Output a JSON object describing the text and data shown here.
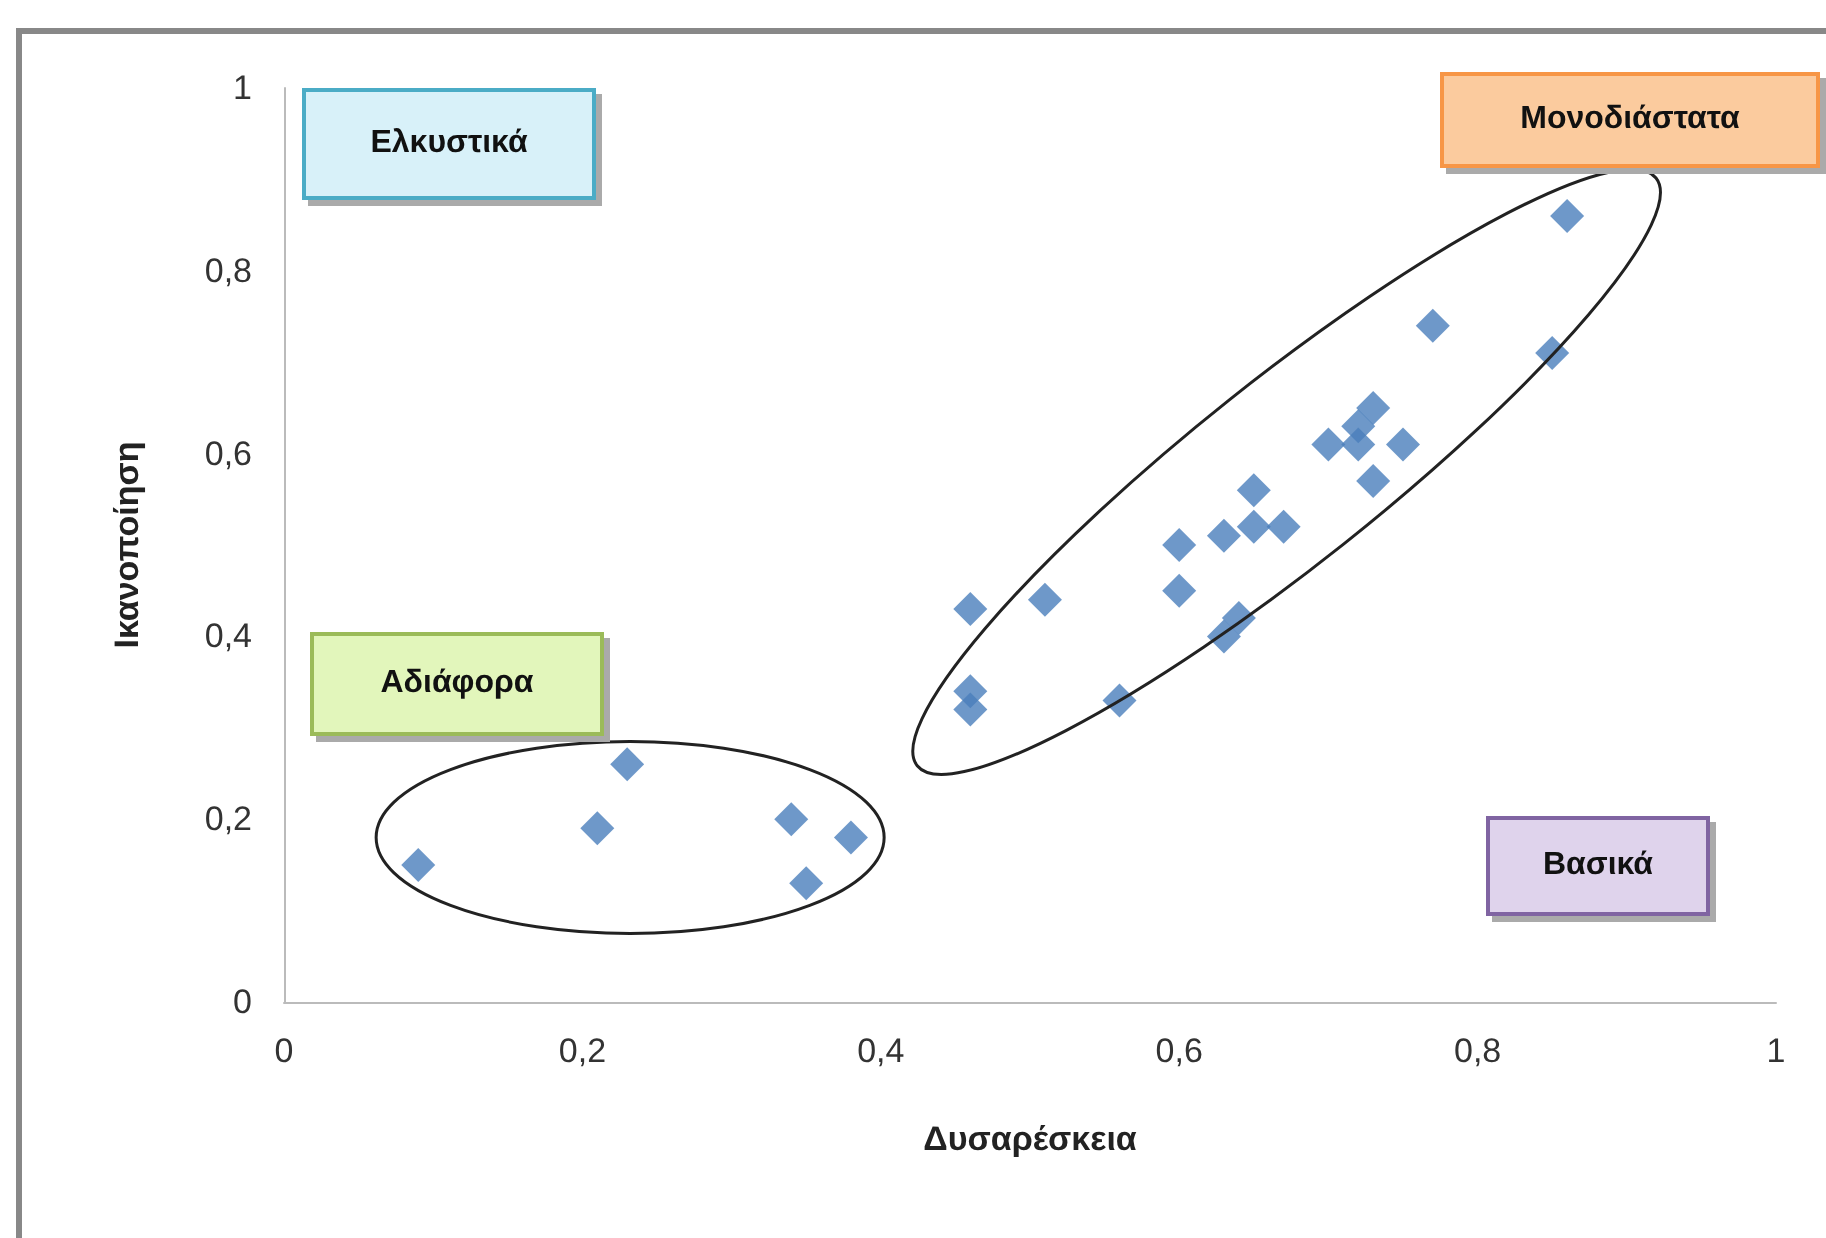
{
  "chart_data": {
    "type": "scatter",
    "xlabel": "Δυσαρέσκεια",
    "ylabel": "Ικανοποίηση",
    "annotations": [
      "Ελκυστικά",
      "Μονοδιάστατα",
      "Αδιάφορα",
      "Βασικά"
    ],
    "series": [
      {
        "color": "#4a7ebb",
        "x": [
          0.09,
          0.21,
          0.23,
          0.34,
          0.35,
          0.38,
          0.46,
          0.46,
          0.46,
          0.51,
          0.56,
          0.6,
          0.6,
          0.63,
          0.63,
          0.64,
          0.65,
          0.65,
          0.67,
          0.7,
          0.72,
          0.72,
          0.73,
          0.73,
          0.75,
          0.77,
          0.85,
          0.86
        ],
        "values": [
          0.15,
          0.19,
          0.26,
          0.2,
          0.13,
          0.18,
          0.43,
          0.34,
          0.32,
          0.44,
          0.33,
          0.5,
          0.45,
          0.51,
          0.4,
          0.42,
          0.56,
          0.52,
          0.52,
          0.61,
          0.63,
          0.61,
          0.65,
          0.57,
          0.61,
          0.74,
          0.71,
          0.86
        ]
      }
    ],
    "xlim": [
      0,
      1
    ],
    "ylim": [
      0,
      1
    ],
    "xticks": [
      0,
      {
        "value": 0.2,
        "label": "0,2"
      },
      {
        "value": 0.4,
        "label": "0,4"
      },
      {
        "value": 0.6,
        "label": "0,6"
      },
      {
        "value": 0.8,
        "label": "0,8"
      },
      1
    ],
    "yticks": [
      0,
      {
        "value": 0.2,
        "label": "0,2"
      },
      {
        "value": 0.4,
        "label": "0,4"
      },
      {
        "value": 0.6,
        "label": "0,6"
      },
      {
        "value": 0.8,
        "label": "0,8"
      },
      1
    ],
    "marker": "diamond"
  }
}
